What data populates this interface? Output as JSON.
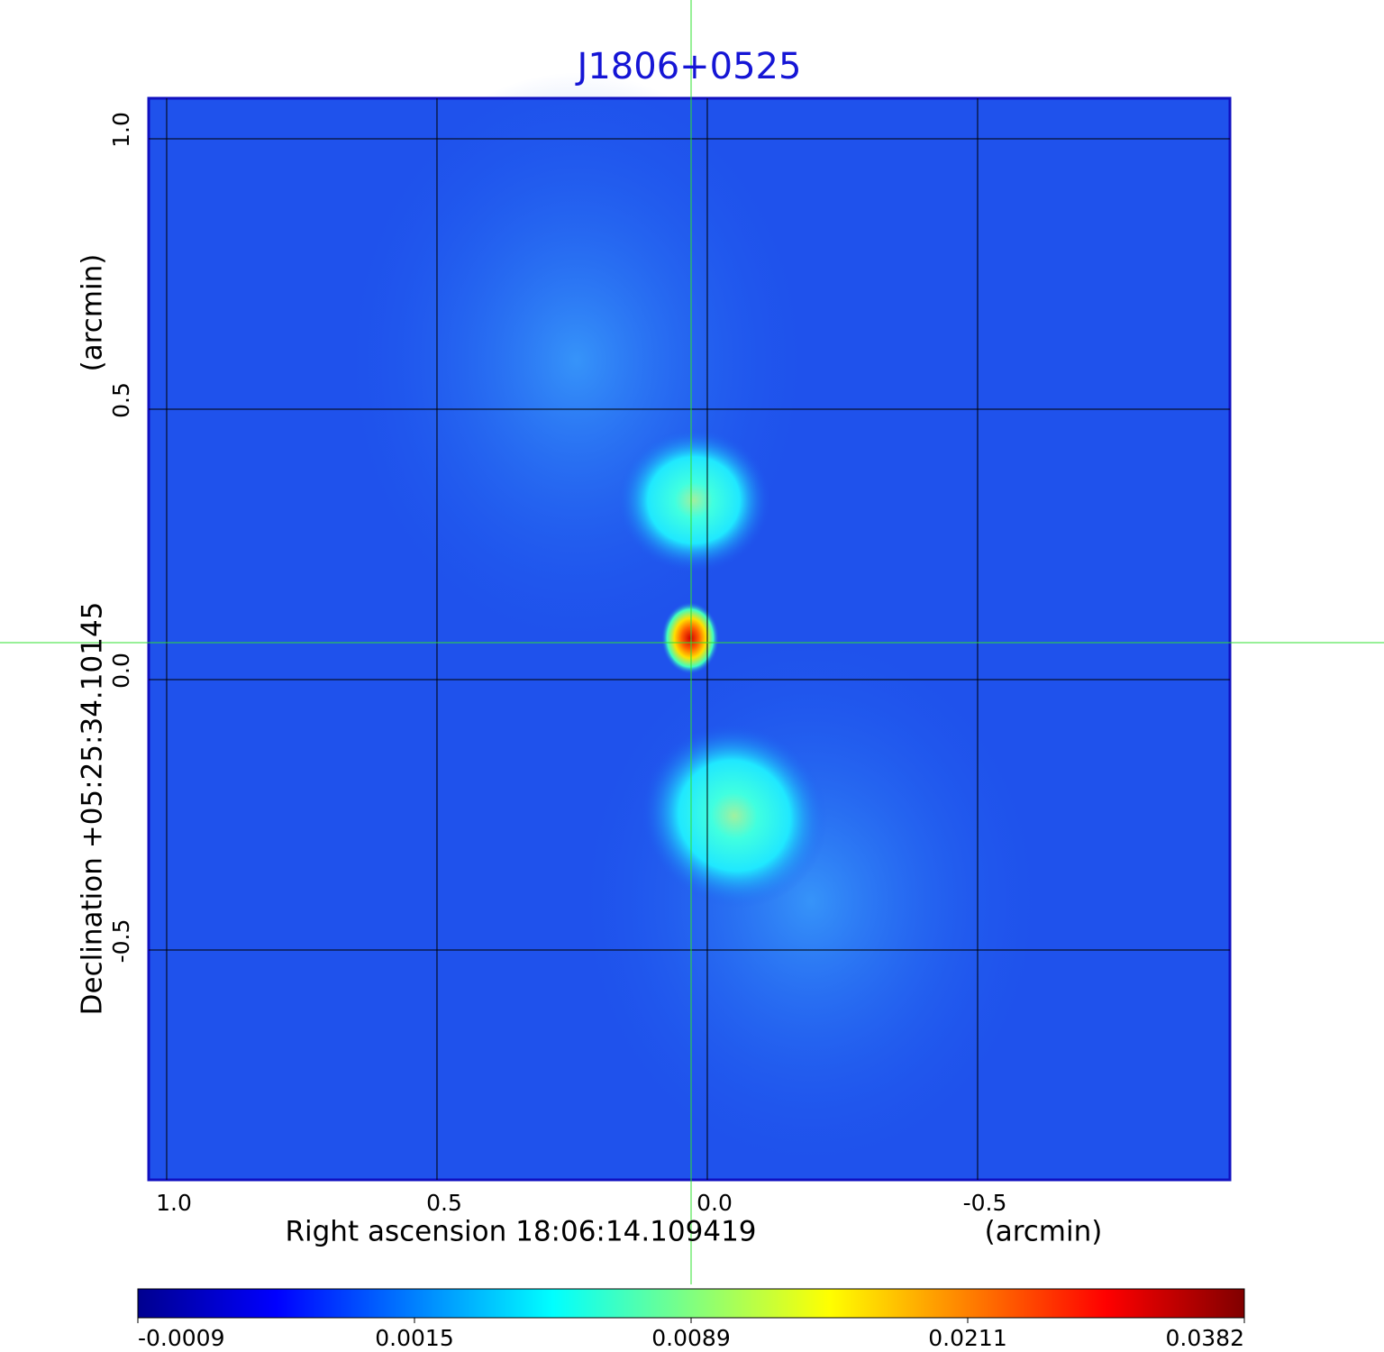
{
  "chart_data": {
    "type": "heatmap",
    "title": "J1806+0525",
    "x_label": "Right ascension  18:06:14.109419",
    "x_unit": "(arcmin)",
    "y_label": "Declination  +05:25:34.10145",
    "y_unit": "(arcmin)",
    "xlim": [
      1.0333,
      -0.9667
    ],
    "ylim": [
      -0.925,
      1.075
    ],
    "xticks": [
      {
        "value": 1,
        "label": "1.0"
      },
      {
        "value": 0.5,
        "label": "0.5"
      },
      {
        "value": 0,
        "label": "0.0"
      },
      {
        "value": -0.5,
        "label": "-0.5"
      }
    ],
    "yticks": [
      {
        "value": 1,
        "label": "1.0"
      },
      {
        "value": 0.5,
        "label": "0.5"
      },
      {
        "value": 0,
        "label": "0.0"
      },
      {
        "value": -0.5,
        "label": "-0.5"
      }
    ],
    "grid": true,
    "colormap": "jet",
    "colorbar_ticks": [
      -0.0009,
      0.0015,
      0.0089,
      0.0211,
      0.0382
    ]
  }
}
